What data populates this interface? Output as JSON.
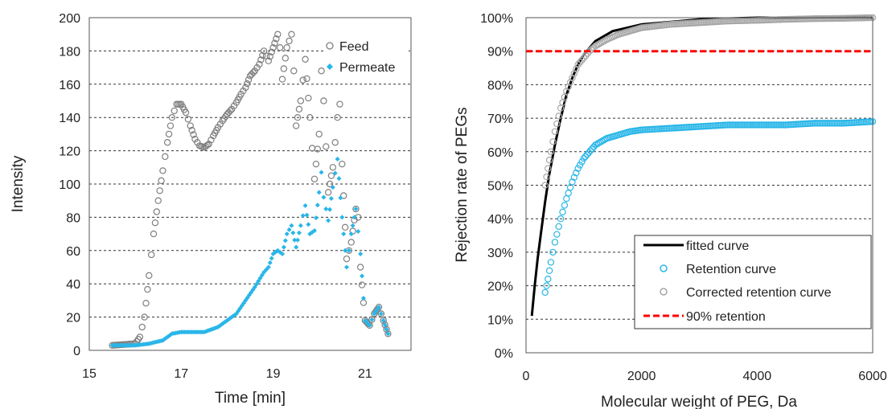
{
  "chart_data": [
    {
      "type": "scatter",
      "xlabel": "Time [min]",
      "ylabel": "Intensity",
      "xlim": [
        15,
        22
      ],
      "ylim": [
        0,
        200
      ],
      "x_ticks": [
        15,
        17,
        19,
        21
      ],
      "y_ticks": [
        0,
        20,
        40,
        60,
        80,
        100,
        120,
        140,
        160,
        180,
        200
      ],
      "x_tick_labels": [
        "15",
        "17",
        "19",
        "21"
      ],
      "y_tick_labels": [
        "0",
        "20",
        "40",
        "60",
        "80",
        "100",
        "120",
        "140",
        "160",
        "180",
        "200"
      ],
      "grid": "horizontal dashed",
      "legend_position": "top-right",
      "series": [
        {
          "name": "Feed",
          "marker": "open-circle",
          "color": "#7f7f7f",
          "points": [
            [
              15.5,
              3
            ],
            [
              16.0,
              4
            ],
            [
              16.1,
              8
            ],
            [
              16.2,
              20
            ],
            [
              16.3,
              45
            ],
            [
              16.4,
              70
            ],
            [
              16.5,
              90
            ],
            [
              16.6,
              108
            ],
            [
              16.7,
              125
            ],
            [
              16.8,
              140
            ],
            [
              16.9,
              148
            ],
            [
              17.0,
              148
            ],
            [
              17.1,
              143
            ],
            [
              17.2,
              135
            ],
            [
              17.3,
              127
            ],
            [
              17.4,
              123
            ],
            [
              17.5,
              122
            ],
            [
              17.6,
              124
            ],
            [
              17.7,
              129
            ],
            [
              17.8,
              134
            ],
            [
              17.9,
              138
            ],
            [
              18.0,
              142
            ],
            [
              18.1,
              145
            ],
            [
              18.2,
              149
            ],
            [
              18.3,
              154
            ],
            [
              18.4,
              158
            ],
            [
              18.5,
              165
            ],
            [
              18.6,
              168
            ],
            [
              18.7,
              172
            ],
            [
              18.8,
              180
            ],
            [
              18.9,
              174
            ],
            [
              19.0,
              182
            ],
            [
              19.1,
              190
            ],
            [
              19.15,
              182
            ],
            [
              19.2,
              163
            ],
            [
              19.3,
              182
            ],
            [
              19.4,
              190
            ],
            [
              19.45,
              168
            ],
            [
              19.5,
              135
            ],
            [
              19.6,
              150
            ],
            [
              19.7,
              175
            ],
            [
              19.8,
              140
            ],
            [
              19.9,
              103
            ],
            [
              20.0,
              130
            ],
            [
              20.05,
              168
            ],
            [
              20.1,
              150
            ],
            [
              20.2,
              95
            ],
            [
              20.3,
              110
            ],
            [
              20.4,
              140
            ],
            [
              20.45,
              148
            ],
            [
              20.5,
              112
            ],
            [
              20.6,
              55
            ],
            [
              20.7,
              65
            ],
            [
              20.8,
              85
            ],
            [
              20.85,
              80
            ],
            [
              20.9,
              50
            ],
            [
              21.0,
              18
            ],
            [
              21.1,
              15
            ],
            [
              21.2,
              22
            ],
            [
              21.3,
              26
            ],
            [
              21.4,
              18
            ],
            [
              21.5,
              10
            ]
          ]
        },
        {
          "name": "Permeate",
          "marker": "filled-diamond",
          "color": "#29b6e8",
          "points": [
            [
              15.5,
              3
            ],
            [
              16.0,
              3
            ],
            [
              16.3,
              4
            ],
            [
              16.6,
              6
            ],
            [
              16.8,
              10
            ],
            [
              17.0,
              11
            ],
            [
              17.5,
              11
            ],
            [
              17.8,
              14
            ],
            [
              18.0,
              18
            ],
            [
              18.2,
              22
            ],
            [
              18.4,
              30
            ],
            [
              18.6,
              38
            ],
            [
              18.8,
              47
            ],
            [
              18.9,
              50
            ],
            [
              19.0,
              58
            ],
            [
              19.1,
              60
            ],
            [
              19.2,
              58
            ],
            [
              19.3,
              70
            ],
            [
              19.4,
              75
            ],
            [
              19.5,
              62
            ],
            [
              19.6,
              75
            ],
            [
              19.7,
              87
            ],
            [
              19.8,
              70
            ],
            [
              19.9,
              72
            ],
            [
              20.0,
              95
            ],
            [
              20.05,
              107
            ],
            [
              20.1,
              92
            ],
            [
              20.2,
              78
            ],
            [
              20.3,
              98
            ],
            [
              20.4,
              115
            ],
            [
              20.5,
              80
            ],
            [
              20.6,
              50
            ],
            [
              20.7,
              70
            ],
            [
              20.8,
              85
            ],
            [
              20.9,
              58
            ],
            [
              21.0,
              18
            ],
            [
              21.1,
              15
            ],
            [
              21.2,
              22
            ],
            [
              21.3,
              26
            ],
            [
              21.4,
              18
            ],
            [
              21.5,
              10
            ]
          ]
        }
      ]
    },
    {
      "type": "scatter",
      "xlabel": "Molecular weight of PEG, Da",
      "ylabel": "Rejection rate of PEGs",
      "xlim": [
        0,
        6000
      ],
      "ylim": [
        0,
        100
      ],
      "x_ticks": [
        0,
        2000,
        4000,
        6000
      ],
      "y_ticks": [
        0,
        10,
        20,
        30,
        40,
        50,
        60,
        70,
        80,
        90,
        100
      ],
      "x_tick_labels": [
        "0",
        "2000",
        "4000",
        "6000"
      ],
      "y_tick_labels": [
        "0%",
        "10%",
        "20%",
        "30%",
        "40%",
        "50%",
        "60%",
        "70%",
        "80%",
        "90%",
        "100%"
      ],
      "grid": "horizontal dashed",
      "legend_position": "bottom-right",
      "series": [
        {
          "name": "fitted curve",
          "style": "solid-line",
          "color": "#000000",
          "points": [
            [
              100,
              11
            ],
            [
              150,
              20
            ],
            [
              200,
              28
            ],
            [
              260,
              36
            ],
            [
              330,
              45
            ],
            [
              400,
              53
            ],
            [
              500,
              62
            ],
            [
              600,
              70
            ],
            [
              700,
              77
            ],
            [
              800,
              82
            ],
            [
              900,
              86
            ],
            [
              1000,
              89
            ],
            [
              1200,
              93
            ],
            [
              1500,
              96
            ],
            [
              2000,
              98
            ],
            [
              3000,
              99.5
            ],
            [
              4000,
              100
            ],
            [
              6000,
              100
            ]
          ]
        },
        {
          "name": "Retention curve",
          "marker": "open-circle",
          "color": "#29b6e8",
          "points": [
            [
              330,
              18
            ],
            [
              380,
              22
            ],
            [
              430,
              27
            ],
            [
              500,
              33
            ],
            [
              600,
              40
            ],
            [
              700,
              46
            ],
            [
              800,
              51
            ],
            [
              900,
              55
            ],
            [
              1000,
              58
            ],
            [
              1200,
              62
            ],
            [
              1400,
              64
            ],
            [
              1600,
              65
            ],
            [
              1800,
              66
            ],
            [
              2000,
              66.5
            ],
            [
              2500,
              67
            ],
            [
              3000,
              67.5
            ],
            [
              3500,
              68
            ],
            [
              4000,
              68
            ],
            [
              4500,
              68
            ],
            [
              5000,
              68.5
            ],
            [
              5500,
              68.5
            ],
            [
              6000,
              69
            ]
          ]
        },
        {
          "name": "Corrected retention curve",
          "marker": "open-circle",
          "color": "#a6a6a6",
          "points": [
            [
              330,
              50
            ],
            [
              380,
              55
            ],
            [
              430,
              60
            ],
            [
              500,
              66
            ],
            [
              600,
              73
            ],
            [
              700,
              78
            ],
            [
              800,
              82
            ],
            [
              900,
              86
            ],
            [
              1000,
              88
            ],
            [
              1100,
              90
            ],
            [
              1200,
              91.5
            ],
            [
              1400,
              93.5
            ],
            [
              1600,
              95
            ],
            [
              1800,
              96
            ],
            [
              2000,
              97
            ],
            [
              2500,
              98
            ],
            [
              3000,
              98.5
            ],
            [
              3500,
              99
            ],
            [
              4000,
              99.2
            ],
            [
              4500,
              99.5
            ],
            [
              5000,
              99.7
            ],
            [
              5500,
              99.8
            ],
            [
              6000,
              100
            ]
          ]
        },
        {
          "name": "90% retention",
          "style": "dashed-line",
          "color": "#ff0000",
          "points": [
            [
              0,
              90
            ],
            [
              6000,
              90
            ]
          ]
        }
      ]
    }
  ]
}
